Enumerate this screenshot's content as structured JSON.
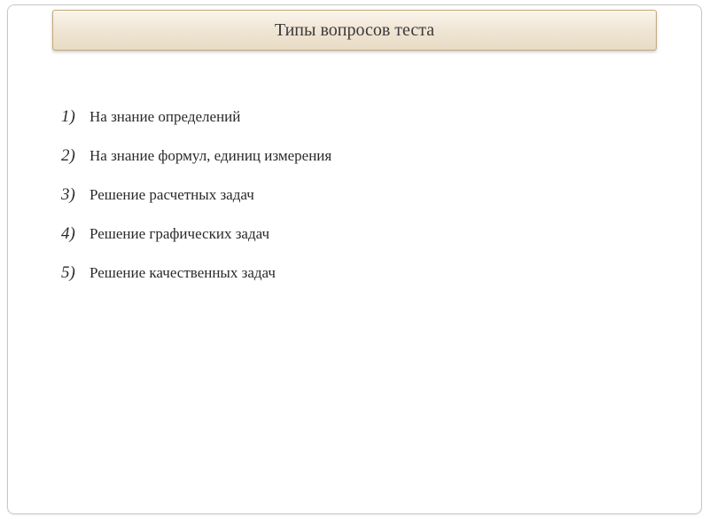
{
  "slide": {
    "title": "Типы вопросов теста",
    "items": [
      {
        "num": "1)",
        "text": "На знание определений"
      },
      {
        "num": "2)",
        "text": "На знание формул, единиц измерения"
      },
      {
        "num": "3)",
        "text": "Решение расчетных задач"
      },
      {
        "num": "4)",
        "text": "Решение графических задач"
      },
      {
        "num": "5)",
        "text": "Решение качественных задач"
      }
    ]
  },
  "style": {
    "banner_gradient_top": "#faf5ed",
    "banner_gradient_mid": "#f0e5d4",
    "banner_gradient_bot": "#e8dcc5",
    "banner_border": "#c2a878",
    "frame_border": "#c8c8c8",
    "text_color": "#2a2a2a",
    "title_fontsize": 20,
    "number_fontsize": 19,
    "item_fontsize": 17,
    "item_spacing": 22
  }
}
